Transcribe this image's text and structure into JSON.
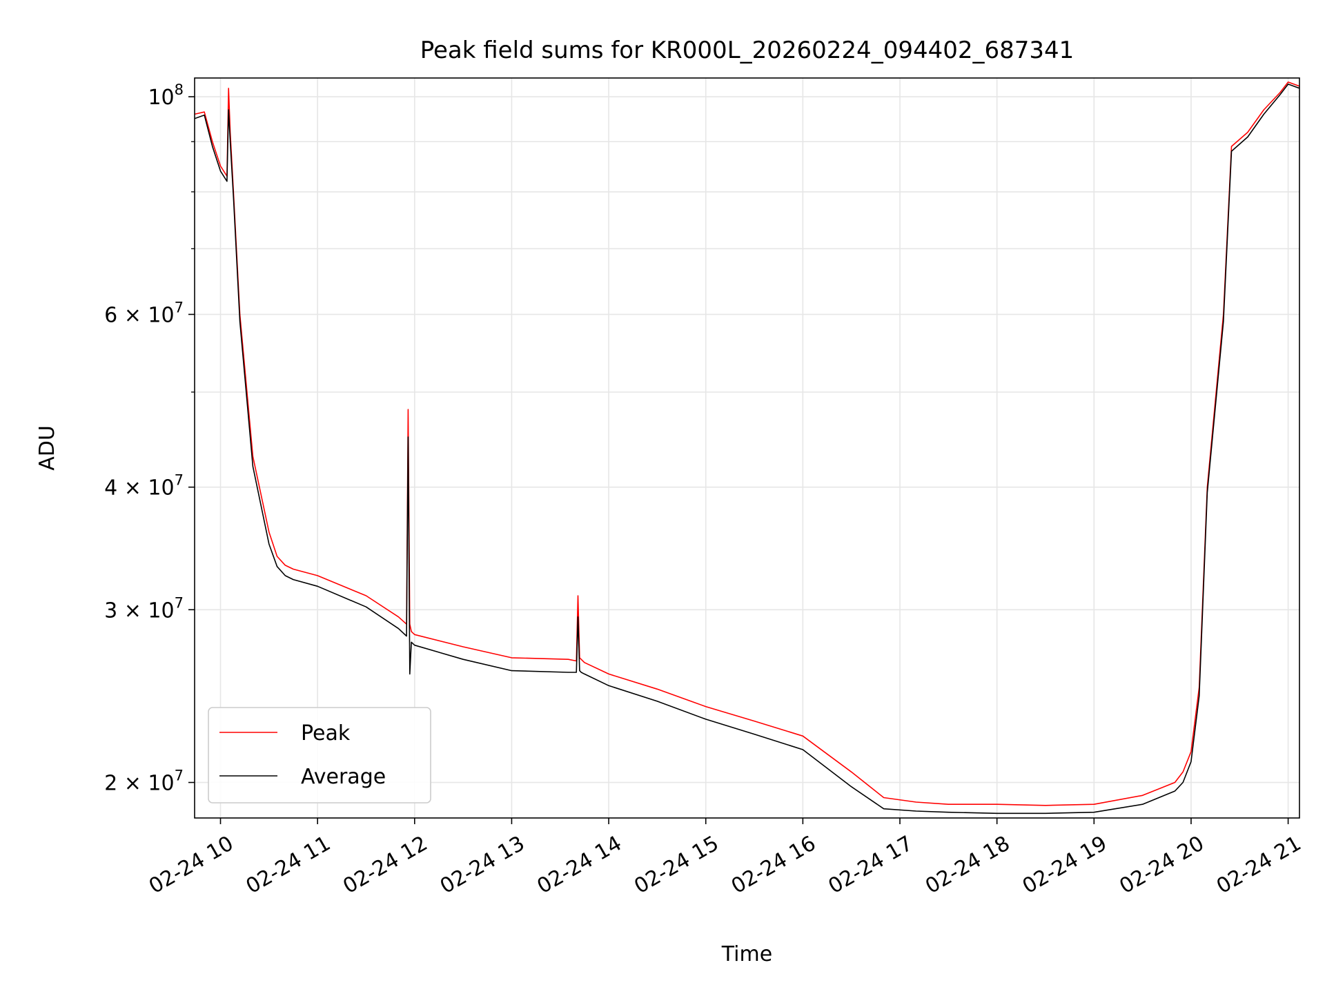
{
  "chart_data": {
    "type": "line",
    "title": "Peak field sums for KR000L_20260224_094402_687341",
    "xlabel": "Time",
    "ylabel": "ADU",
    "x_range": [
      "2026-02-24 09:44",
      "2026-02-24 21:07"
    ],
    "y_scale": "log",
    "ylim": [
      18400000,
      104500000
    ],
    "grid": true,
    "legend_position": "lower-left",
    "x_ticks": [
      {
        "time": "2026-02-24 10:00",
        "label": "02-24 10"
      },
      {
        "time": "2026-02-24 11:00",
        "label": "02-24 11"
      },
      {
        "time": "2026-02-24 12:00",
        "label": "02-24 12"
      },
      {
        "time": "2026-02-24 13:00",
        "label": "02-24 13"
      },
      {
        "time": "2026-02-24 14:00",
        "label": "02-24 14"
      },
      {
        "time": "2026-02-24 15:00",
        "label": "02-24 15"
      },
      {
        "time": "2026-02-24 16:00",
        "label": "02-24 16"
      },
      {
        "time": "2026-02-24 17:00",
        "label": "02-24 17"
      },
      {
        "time": "2026-02-24 18:00",
        "label": "02-24 18"
      },
      {
        "time": "2026-02-24 19:00",
        "label": "02-24 19"
      },
      {
        "time": "2026-02-24 20:00",
        "label": "02-24 20"
      },
      {
        "time": "2026-02-24 21:00",
        "label": "02-24 21"
      }
    ],
    "y_ticks": [
      {
        "value": 20000000,
        "mantissa": "2",
        "base": "10",
        "exponent": "7"
      },
      {
        "value": 30000000,
        "mantissa": "3",
        "base": "10",
        "exponent": "7"
      },
      {
        "value": 40000000,
        "mantissa": "4",
        "base": "10",
        "exponent": "7"
      },
      {
        "value": 60000000,
        "mantissa": "6",
        "base": "10",
        "exponent": "7"
      },
      {
        "value": 100000000,
        "mantissa": "",
        "base": "10",
        "exponent": "8"
      }
    ],
    "y_minor_ticks": [
      50000000,
      70000000,
      80000000,
      90000000
    ],
    "series": [
      {
        "name": "Peak",
        "color": "#ff0000",
        "x": [
          "2026-02-24 09:44",
          "2026-02-24 09:50",
          "2026-02-24 09:55",
          "2026-02-24 10:00",
          "2026-02-24 10:04",
          "2026-02-24 10:05",
          "2026-02-24 10:06",
          "2026-02-24 10:08",
          "2026-02-24 10:12",
          "2026-02-24 10:20",
          "2026-02-24 10:30",
          "2026-02-24 10:35",
          "2026-02-24 10:40",
          "2026-02-24 10:45",
          "2026-02-24 11:00",
          "2026-02-24 11:30",
          "2026-02-24 11:50",
          "2026-02-24 11:55",
          "2026-02-24 11:56",
          "2026-02-24 11:57",
          "2026-02-24 11:58",
          "2026-02-24 12:00",
          "2026-02-24 12:30",
          "2026-02-24 13:00",
          "2026-02-24 13:35",
          "2026-02-24 13:40",
          "2026-02-24 13:41",
          "2026-02-24 13:42",
          "2026-02-24 13:43",
          "2026-02-24 13:45",
          "2026-02-24 14:00",
          "2026-02-24 14:30",
          "2026-02-24 15:00",
          "2026-02-24 15:30",
          "2026-02-24 16:00",
          "2026-02-24 16:30",
          "2026-02-24 16:50",
          "2026-02-24 17:10",
          "2026-02-24 17:30",
          "2026-02-24 18:00",
          "2026-02-24 18:30",
          "2026-02-24 19:00",
          "2026-02-24 19:30",
          "2026-02-24 19:50",
          "2026-02-24 19:55",
          "2026-02-24 20:00",
          "2026-02-24 20:05",
          "2026-02-24 20:10",
          "2026-02-24 20:20",
          "2026-02-24 20:25",
          "2026-02-24 20:35",
          "2026-02-24 20:45",
          "2026-02-24 20:55",
          "2026-02-24 21:00",
          "2026-02-24 21:07"
        ],
        "y": [
          96000000,
          96500000,
          90000000,
          85000000,
          83000000,
          102000000,
          92000000,
          80000000,
          60000000,
          43000000,
          36000000,
          34000000,
          33300000,
          33000000,
          32500000,
          31000000,
          29500000,
          29000000,
          48000000,
          29000000,
          28500000,
          28300000,
          27500000,
          26800000,
          26700000,
          26600000,
          31000000,
          26800000,
          26700000,
          26500000,
          25800000,
          24900000,
          23900000,
          23100000,
          22300000,
          20500000,
          19300000,
          19100000,
          19000000,
          19000000,
          18950000,
          19000000,
          19400000,
          20000000,
          20500000,
          21500000,
          25000000,
          40000000,
          60000000,
          89000000,
          92000000,
          97000000,
          101000000,
          103500000,
          102500000
        ]
      },
      {
        "name": "Average",
        "color": "#000000",
        "x": [
          "2026-02-24 09:44",
          "2026-02-24 09:50",
          "2026-02-24 09:55",
          "2026-02-24 10:00",
          "2026-02-24 10:04",
          "2026-02-24 10:05",
          "2026-02-24 10:06",
          "2026-02-24 10:08",
          "2026-02-24 10:12",
          "2026-02-24 10:20",
          "2026-02-24 10:30",
          "2026-02-24 10:35",
          "2026-02-24 10:40",
          "2026-02-24 10:45",
          "2026-02-24 11:00",
          "2026-02-24 11:30",
          "2026-02-24 11:50",
          "2026-02-24 11:55",
          "2026-02-24 11:56",
          "2026-02-24 11:57",
          "2026-02-24 11:58",
          "2026-02-24 12:00",
          "2026-02-24 12:30",
          "2026-02-24 13:00",
          "2026-02-24 13:35",
          "2026-02-24 13:40",
          "2026-02-24 13:41",
          "2026-02-24 13:42",
          "2026-02-24 13:43",
          "2026-02-24 13:45",
          "2026-02-24 14:00",
          "2026-02-24 14:30",
          "2026-02-24 15:00",
          "2026-02-24 15:30",
          "2026-02-24 16:00",
          "2026-02-24 16:30",
          "2026-02-24 16:50",
          "2026-02-24 17:10",
          "2026-02-24 17:30",
          "2026-02-24 18:00",
          "2026-02-24 18:30",
          "2026-02-24 19:00",
          "2026-02-24 19:30",
          "2026-02-24 19:50",
          "2026-02-24 19:55",
          "2026-02-24 20:00",
          "2026-02-24 20:05",
          "2026-02-24 20:10",
          "2026-02-24 20:20",
          "2026-02-24 20:25",
          "2026-02-24 20:35",
          "2026-02-24 20:45",
          "2026-02-24 20:55",
          "2026-02-24 21:00",
          "2026-02-24 21:07"
        ],
        "y": [
          95000000,
          95800000,
          89000000,
          84000000,
          82000000,
          97000000,
          90000000,
          79000000,
          59000000,
          42000000,
          35000000,
          33200000,
          32500000,
          32200000,
          31700000,
          30200000,
          28700000,
          28200000,
          45000000,
          25800000,
          27800000,
          27600000,
          26700000,
          26000000,
          25900000,
          25900000,
          29500000,
          26000000,
          25900000,
          25800000,
          25100000,
          24200000,
          23200000,
          22400000,
          21600000,
          19800000,
          18800000,
          18700000,
          18650000,
          18600000,
          18600000,
          18650000,
          19000000,
          19600000,
          20000000,
          21000000,
          24500000,
          39500000,
          59000000,
          88000000,
          91000000,
          96000000,
          100500000,
          103000000,
          102000000
        ]
      }
    ]
  }
}
